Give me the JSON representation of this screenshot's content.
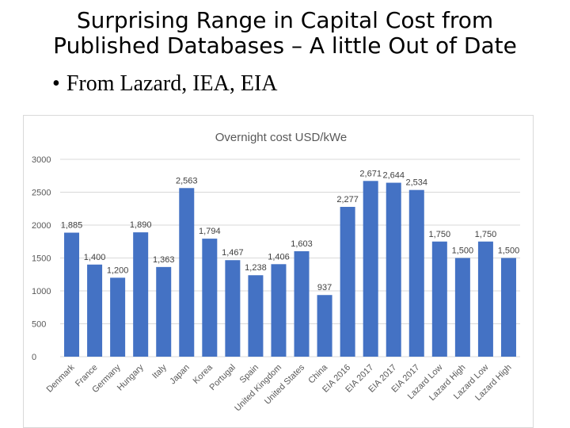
{
  "slide": {
    "title_line1": "Surprising Range in Capital Cost from",
    "title_line2": "Published Databases – A little Out of Date",
    "bullet_marker": "•",
    "bullet": "From Lazard, IEA, EIA"
  },
  "colors": {
    "bar": "#4472C4",
    "grid": "#d9d9d9",
    "axis_text": "#595959"
  },
  "chart_data": {
    "type": "bar",
    "title": "Overnight cost USD/kWe",
    "xlabel": "",
    "ylabel": "",
    "ylim": [
      0,
      3000
    ],
    "yticks": [
      0,
      500,
      1000,
      1500,
      2000,
      2500,
      3000
    ],
    "ytick_labels": [
      "0",
      "500",
      "1000",
      "1500",
      "2000",
      "2500",
      "3000"
    ],
    "categories": [
      "Denmark",
      "France",
      "Germany",
      "Hungary",
      "Italy",
      "Japan",
      "Korea",
      "Portugal",
      "Spain",
      "United Kingdom",
      "United States",
      "China",
      "EIA 2016",
      "EIA 2017",
      "EIA 2017",
      "EIA 2017",
      "Lazard Low",
      "Lazard High",
      "Lazard Low",
      "Lazard High"
    ],
    "values": [
      1885,
      1400,
      1200,
      1890,
      1363,
      2563,
      1794,
      1467,
      1238,
      1406,
      1603,
      937,
      2277,
      2671,
      2644,
      2534,
      1750,
      1500,
      1750,
      1500
    ],
    "data_labels": [
      "1,885",
      "1,400",
      "1,200",
      "1,890",
      "1,363",
      "2,563",
      "1,794",
      "1,467",
      "1,238",
      "1,406",
      "1,603",
      "937",
      "2,277",
      "2,671",
      "2,644",
      "2,534",
      "1,750",
      "1,500",
      "1,750",
      "1,500"
    ],
    "grid": true,
    "legend": "none"
  }
}
